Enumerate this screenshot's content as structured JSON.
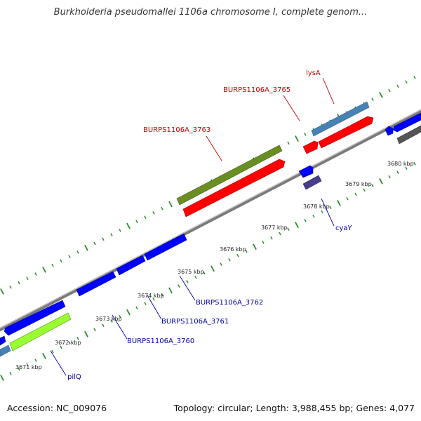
{
  "title": "Burkholderia pseudomallei 1106a chromosome I, complete genom...",
  "footer": {
    "accession": "Accession: NC_009076",
    "summary": "Topology: circular; Length: 3,988,455 bp; Genes: 4,077"
  },
  "colors": {
    "backbone": "#8c8c8c",
    "tick": "#2e8b2e",
    "forward_label": "#cc0000",
    "reverse_label": "#0000aa",
    "cds_forward": "#ff0000",
    "cds_reverse": "#0000ff",
    "rna_like": "#4682b4",
    "pseudo": "#6b8e23",
    "accent": "#99ff33",
    "misc": "#555555",
    "slate": "#483d8b"
  },
  "position_labels": [
    "3671 kbp",
    "3672 kbp",
    "3673 kbp",
    "3674 kbp",
    "3675 kbp",
    "3676 kbp",
    "3677 kbp",
    "3678 kbp",
    "3679 kbp",
    "3680 kbp"
  ],
  "gene_labels": [
    {
      "text": "lysA",
      "strand": "forward"
    },
    {
      "text": "BURPS1106A_3765",
      "strand": "forward"
    },
    {
      "text": "BURPS1106A_3763",
      "strand": "forward"
    },
    {
      "text": "cyaY",
      "strand": "reverse"
    },
    {
      "text": "BURPS1106A_3762",
      "strand": "reverse"
    },
    {
      "text": "BURPS1106A_3761",
      "strand": "reverse"
    },
    {
      "text": "BURPS1106A_3760",
      "strand": "reverse"
    },
    {
      "text": "pilQ",
      "strand": "reverse"
    }
  ]
}
